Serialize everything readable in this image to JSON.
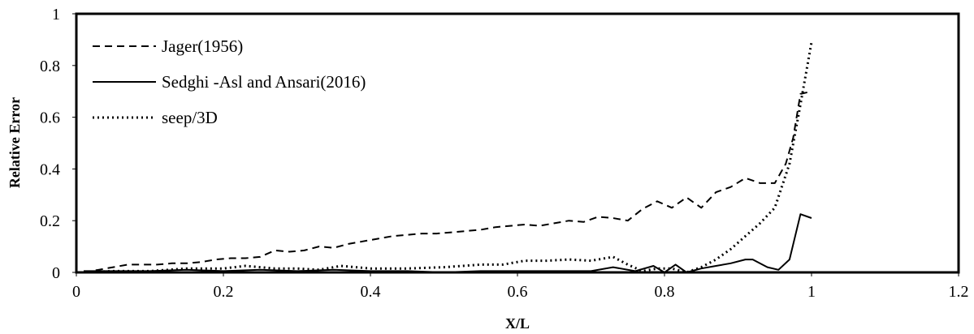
{
  "chart_data": {
    "type": "line",
    "title": "",
    "xlabel": "X/L",
    "ylabel": "Relative Error",
    "xlim": [
      0,
      1.2
    ],
    "ylim": [
      0,
      1
    ],
    "x_ticks": [
      "0",
      "0.2",
      "0.4",
      "0.6",
      "0.8",
      "1",
      "1.2"
    ],
    "y_ticks": [
      "0",
      "0.2",
      "0.4",
      "0.6",
      "0.8",
      "1"
    ],
    "grid": false,
    "legend_position": "top-left",
    "series": [
      {
        "name": "Jager(1956)",
        "style": "dashed",
        "color": "#000000",
        "x": [
          0.01,
          0.03,
          0.05,
          0.07,
          0.09,
          0.11,
          0.13,
          0.15,
          0.17,
          0.19,
          0.21,
          0.23,
          0.25,
          0.27,
          0.29,
          0.31,
          0.33,
          0.35,
          0.37,
          0.39,
          0.41,
          0.43,
          0.45,
          0.47,
          0.49,
          0.51,
          0.53,
          0.55,
          0.57,
          0.59,
          0.61,
          0.63,
          0.65,
          0.67,
          0.69,
          0.71,
          0.73,
          0.75,
          0.77,
          0.79,
          0.81,
          0.83,
          0.85,
          0.87,
          0.89,
          0.91,
          0.93,
          0.95,
          0.965,
          0.975,
          0.985,
          1.0
        ],
        "values": [
          0.0,
          0.01,
          0.02,
          0.03,
          0.03,
          0.03,
          0.035,
          0.035,
          0.04,
          0.05,
          0.055,
          0.055,
          0.06,
          0.085,
          0.08,
          0.085,
          0.1,
          0.095,
          0.11,
          0.12,
          0.13,
          0.14,
          0.145,
          0.15,
          0.15,
          0.155,
          0.16,
          0.165,
          0.175,
          0.18,
          0.185,
          0.18,
          0.19,
          0.2,
          0.195,
          0.215,
          0.21,
          0.2,
          0.245,
          0.275,
          0.25,
          0.29,
          0.25,
          0.31,
          0.33,
          0.365,
          0.345,
          0.345,
          0.42,
          0.52,
          0.69,
          0.7
        ]
      },
      {
        "name": "Sedghi -Asl and Ansari(2016)",
        "style": "solid",
        "color": "#000000",
        "x": [
          0.01,
          0.05,
          0.1,
          0.15,
          0.2,
          0.25,
          0.3,
          0.35,
          0.4,
          0.45,
          0.5,
          0.55,
          0.6,
          0.65,
          0.7,
          0.73,
          0.76,
          0.785,
          0.8,
          0.815,
          0.83,
          0.85,
          0.87,
          0.89,
          0.91,
          0.92,
          0.94,
          0.955,
          0.97,
          0.985,
          1.0
        ],
        "values": [
          0.005,
          0.005,
          0.005,
          0.01,
          0.005,
          0.01,
          0.005,
          0.01,
          0.005,
          0.005,
          0.0,
          0.005,
          0.005,
          0.005,
          0.005,
          0.02,
          0.005,
          0.025,
          0.0,
          0.03,
          0.0,
          0.015,
          0.025,
          0.035,
          0.05,
          0.05,
          0.02,
          0.01,
          0.05,
          0.225,
          0.21
        ]
      },
      {
        "name": "seep/3D",
        "style": "dotted",
        "color": "#000000",
        "x": [
          0.01,
          0.05,
          0.1,
          0.15,
          0.2,
          0.23,
          0.27,
          0.3,
          0.33,
          0.36,
          0.4,
          0.45,
          0.5,
          0.55,
          0.58,
          0.61,
          0.64,
          0.67,
          0.7,
          0.73,
          0.75,
          0.77,
          0.79,
          0.81,
          0.83,
          0.85,
          0.87,
          0.89,
          0.91,
          0.93,
          0.95,
          0.97,
          0.985,
          1.0
        ],
        "values": [
          0.0,
          0.005,
          0.005,
          0.015,
          0.015,
          0.025,
          0.015,
          0.015,
          0.01,
          0.025,
          0.015,
          0.015,
          0.02,
          0.03,
          0.03,
          0.045,
          0.045,
          0.05,
          0.045,
          0.06,
          0.03,
          0.005,
          0.015,
          0.015,
          0.0,
          0.02,
          0.05,
          0.09,
          0.14,
          0.19,
          0.25,
          0.42,
          0.65,
          0.89
        ]
      }
    ]
  }
}
